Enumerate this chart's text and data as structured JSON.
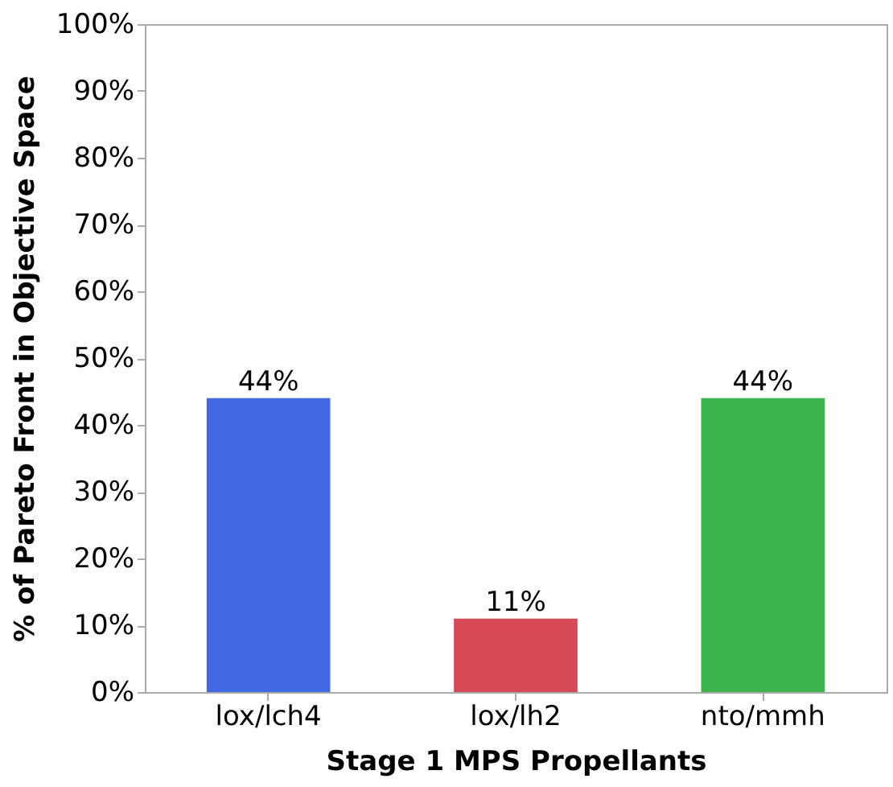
{
  "chart_data": {
    "type": "bar",
    "xlabel": "Stage 1 MPS Propellants",
    "ylabel": "% of Pareto Front in Objective Space",
    "categories": [
      "lox/lch4",
      "lox/lh2",
      "nto/mmh"
    ],
    "values": [
      44,
      11,
      44
    ],
    "colors": [
      "#4169e1",
      "#d64a58",
      "#3cb44b"
    ],
    "value_labels": [
      "44%",
      "11%",
      "44%"
    ],
    "ylim": [
      0,
      100
    ],
    "yticks": [
      {
        "value": 0,
        "label": "0%"
      },
      {
        "value": 10,
        "label": "10%"
      },
      {
        "value": 20,
        "label": "20%"
      },
      {
        "value": 30,
        "label": "30%"
      },
      {
        "value": 40,
        "label": "40%"
      },
      {
        "value": 50,
        "label": "50%"
      },
      {
        "value": 60,
        "label": "60%"
      },
      {
        "value": 70,
        "label": "70%"
      },
      {
        "value": 80,
        "label": "80%"
      },
      {
        "value": 90,
        "label": "90%"
      },
      {
        "value": 100,
        "label": "100%"
      }
    ],
    "grid": false
  }
}
